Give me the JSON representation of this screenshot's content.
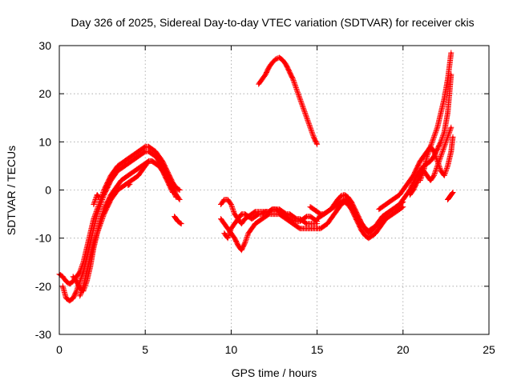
{
  "chart_data": {
    "type": "scatter",
    "title": "Day 326 of 2025, Sidereal Day-to-day VTEC variation (SDTVAR) for receiver ckis",
    "xlabel": "GPS time / hours",
    "ylabel": "SDTVAR / TECUs",
    "xlim": [
      0,
      25
    ],
    "ylim": [
      -30,
      30
    ],
    "xticks": [
      0,
      5,
      10,
      15,
      20,
      25
    ],
    "yticks": [
      -30,
      -20,
      -10,
      0,
      10,
      20,
      30
    ],
    "grid": true,
    "marker": "+",
    "color": "#ff0000",
    "series": [
      {
        "name": "s1",
        "x": [
          0.0,
          0.2,
          0.4,
          0.6,
          0.8,
          1.0,
          1.2,
          1.4,
          1.6,
          1.8,
          2.0,
          2.2,
          2.4,
          2.6,
          2.8,
          3.0,
          3.2,
          3.4,
          3.6,
          3.8,
          4.0,
          4.2,
          4.4,
          4.6,
          4.8,
          5.0,
          5.2,
          5.4,
          5.6,
          5.8,
          6.0,
          6.2,
          6.4,
          6.6,
          6.8,
          7.0
        ],
        "y": [
          -17.5,
          -18,
          -19,
          -19.5,
          -19,
          -18,
          -17,
          -15,
          -12,
          -9,
          -6,
          -4,
          -2,
          0,
          1.5,
          3,
          4,
          5,
          5.5,
          6,
          6.5,
          7,
          7.5,
          8,
          8.5,
          9,
          9,
          8.5,
          8,
          7,
          6,
          4.5,
          3,
          1.5,
          0.5,
          0
        ]
      },
      {
        "name": "s2",
        "x": [
          0.2,
          0.4,
          0.6,
          0.8,
          1.0,
          1.2,
          1.4,
          1.6,
          1.8,
          2.0,
          2.2,
          2.4,
          2.6,
          2.8,
          3.0,
          3.2,
          3.4,
          3.6,
          3.8,
          4.0,
          4.2,
          4.4,
          4.6,
          4.8,
          5.0,
          5.2,
          5.4,
          5.6,
          5.8,
          6.0,
          6.2,
          6.4,
          6.6,
          6.8,
          7.0
        ],
        "y": [
          -20,
          -22.5,
          -23,
          -22.5,
          -21,
          -19,
          -17,
          -14,
          -11,
          -8,
          -5,
          -3,
          -1,
          0.5,
          2,
          3,
          4,
          4.5,
          5,
          5.5,
          6,
          6.5,
          7,
          7.5,
          8,
          8,
          7.5,
          7,
          6,
          5,
          3.5,
          2,
          0.5,
          -1,
          -2
        ]
      },
      {
        "name": "s3",
        "x": [
          0.8,
          1.0,
          1.2,
          1.4,
          1.6,
          1.8,
          2.0,
          2.2,
          2.4,
          2.6,
          2.8,
          3.0,
          3.2,
          3.4,
          3.6,
          3.8,
          4.0,
          4.2,
          4.4,
          4.6,
          4.8,
          5.0,
          5.2,
          5.4,
          5.6,
          5.8,
          6.0,
          6.2,
          6.4,
          6.6
        ],
        "y": [
          -18,
          -19,
          -20.5,
          -21,
          -19,
          -16,
          -12,
          -9,
          -6,
          -4,
          -2.5,
          -1,
          0,
          1,
          2,
          2.5,
          3,
          3.5,
          4,
          4.5,
          5,
          5.5,
          6,
          6,
          5.5,
          5,
          4,
          2.5,
          1,
          -0.5
        ]
      },
      {
        "name": "s4",
        "x": [
          1.2,
          1.4,
          1.6,
          1.8,
          2.0,
          2.2,
          2.4,
          2.6,
          2.8,
          3.0,
          3.2,
          3.4,
          3.6,
          3.8,
          4.0,
          4.2,
          4.4,
          4.6,
          4.8,
          5.0,
          5.2,
          5.4,
          5.6,
          5.8,
          6.0,
          6.2,
          6.4,
          6.6,
          6.8
        ],
        "y": [
          -22,
          -20,
          -17,
          -14,
          -11,
          -9,
          -7,
          -5,
          -3.5,
          -2,
          -1,
          0,
          0.5,
          1,
          1.5,
          2,
          2.5,
          3,
          4,
          5,
          6,
          6,
          5.5,
          5,
          4,
          3,
          1.5,
          0,
          -1.5
        ]
      },
      {
        "name": "s5",
        "x": [
          2.0,
          2.1,
          2.2,
          2.3
        ],
        "y": [
          -3,
          -2,
          -1,
          -1.5
        ]
      },
      {
        "name": "s6",
        "x": [
          6.7,
          6.8,
          6.9,
          7.0,
          7.1
        ],
        "y": [
          -5.5,
          -6,
          -6.5,
          -6.8,
          -7
        ]
      },
      {
        "name": "s7",
        "x": [
          4.0,
          4.1
        ],
        "y": [
          1,
          1.2
        ]
      },
      {
        "name": "s8",
        "x": [
          9.4,
          9.6,
          9.8,
          10.0,
          10.2,
          10.4,
          10.6,
          10.8,
          11.0,
          11.2,
          11.4,
          11.6,
          11.8,
          12.0,
          12.2,
          12.4,
          12.6,
          12.8,
          13.0,
          13.2,
          13.4,
          13.6,
          13.8,
          14.0,
          14.2,
          14.4,
          14.6,
          14.8,
          15.0
        ],
        "y": [
          -3,
          -2,
          -2,
          -3,
          -5,
          -6,
          -7,
          -6,
          -5.5,
          -5,
          -4.5,
          -4.5,
          -4.5,
          -4.5,
          -4.5,
          -4,
          -4,
          -4,
          -4.5,
          -5,
          -5,
          -5.5,
          -6,
          -6,
          -6.5,
          -7,
          -7,
          -7,
          -7
        ]
      },
      {
        "name": "s9",
        "x": [
          9.4,
          9.6,
          9.8,
          10.0,
          10.2,
          10.4,
          10.6,
          10.8,
          11.0,
          11.2,
          11.4,
          11.6,
          11.8,
          12.0,
          12.2,
          12.4,
          12.6,
          12.8,
          13.0,
          13.2,
          13.4,
          13.6,
          13.8,
          14.0,
          14.2,
          14.4,
          14.6,
          14.8,
          15.0
        ],
        "y": [
          -6,
          -7,
          -8,
          -9,
          -10,
          -11.5,
          -12.5,
          -11,
          -9,
          -8,
          -7,
          -6.5,
          -6,
          -5.5,
          -5,
          -5,
          -5,
          -5,
          -5.5,
          -6,
          -6.5,
          -7,
          -7.5,
          -8,
          -8,
          -8,
          -8,
          -8,
          -8
        ]
      },
      {
        "name": "s10",
        "x": [
          9.6,
          9.8,
          10.0,
          10.2,
          10.4,
          10.6,
          10.8,
          11.0,
          11.2,
          11.4,
          11.6,
          11.8,
          12.0,
          12.2,
          12.4,
          12.6,
          12.8,
          13.0,
          13.2,
          13.4,
          13.6,
          13.8,
          14.0,
          14.2,
          14.4,
          14.6,
          14.8,
          15.0
        ],
        "y": [
          -9,
          -10,
          -8,
          -7,
          -6,
          -5,
          -5,
          -5.5,
          -6,
          -5.5,
          -5,
          -5,
          -4.5,
          -4.5,
          -4,
          -4,
          -4.5,
          -5,
          -5.5,
          -6,
          -6.5,
          -6.5,
          -6.5,
          -6,
          -5.5,
          -5.5,
          -6,
          -6.5
        ]
      },
      {
        "name": "s11",
        "x": [
          11.6,
          11.8,
          12.0,
          12.2,
          12.4,
          12.6,
          12.8,
          13.0,
          13.2,
          13.4,
          13.6,
          13.8,
          14.0,
          14.2,
          14.4,
          14.6,
          14.8,
          15.0
        ],
        "y": [
          22,
          23,
          24,
          25.5,
          26.5,
          27.2,
          27.5,
          27,
          26,
          24.5,
          23,
          21,
          19,
          17,
          15,
          13,
          11,
          9.5
        ]
      },
      {
        "name": "s12",
        "x": [
          15.0,
          15.2,
          15.4,
          15.6,
          15.8,
          16.0,
          16.2,
          16.4,
          16.6,
          16.8,
          17.0,
          17.2,
          17.4,
          17.6,
          17.8,
          18.0,
          18.2,
          18.4,
          18.6,
          18.8,
          19.0,
          19.2,
          19.4,
          19.6,
          19.8,
          20.0
        ],
        "y": [
          -6,
          -5.5,
          -5,
          -4.5,
          -4,
          -3,
          -2,
          -1.2,
          -1,
          -1.5,
          -2.5,
          -4,
          -5.5,
          -7,
          -8,
          -9,
          -8.5,
          -7.5,
          -7,
          -6,
          -5,
          -4.5,
          -4,
          -3.5,
          -3,
          -2.5
        ]
      },
      {
        "name": "s13",
        "x": [
          15.0,
          15.2,
          15.4,
          15.6,
          15.8,
          16.0,
          16.2,
          16.4,
          16.6,
          16.8,
          17.0,
          17.2,
          17.4,
          17.6,
          17.8,
          18.0,
          18.2,
          18.4,
          18.6,
          18.8,
          19.0,
          19.2,
          19.4,
          19.6,
          19.8,
          20.0
        ],
        "y": [
          -8,
          -8,
          -7.5,
          -7,
          -6,
          -5,
          -4,
          -3,
          -2.5,
          -3,
          -4,
          -5.5,
          -7,
          -8.5,
          -9.5,
          -10,
          -9.5,
          -9,
          -8,
          -7,
          -6,
          -5.5,
          -5,
          -4.5,
          -4,
          -3.5
        ]
      },
      {
        "name": "s14",
        "x": [
          14.6,
          14.8,
          15.0,
          15.2,
          15.4,
          15.6,
          15.8,
          16.0,
          16.2,
          16.4,
          16.6,
          16.8,
          17.0,
          17.2,
          17.4,
          17.6,
          17.8,
          18.0,
          18.2,
          18.4,
          18.6,
          18.8,
          19.0
        ],
        "y": [
          -3.5,
          -4,
          -4.5,
          -5,
          -5,
          -4.5,
          -4,
          -3.5,
          -3,
          -2.5,
          -2,
          -2.5,
          -3.5,
          -5,
          -6,
          -7,
          -8,
          -8.5,
          -8,
          -7.5,
          -6.5,
          -5.5,
          -5
        ]
      },
      {
        "name": "s15",
        "x": [
          18.6,
          18.8,
          19.0,
          19.2,
          19.4,
          19.6,
          19.8,
          20.0,
          20.2,
          20.4,
          20.6,
          20.8,
          21.0,
          21.2,
          21.4,
          21.6,
          21.8,
          22.0,
          22.2,
          22.4,
          22.6,
          22.8
        ],
        "y": [
          -4,
          -3.5,
          -3,
          -2.5,
          -2,
          -1.5,
          -1,
          0,
          1,
          2,
          3,
          4.5,
          6,
          7,
          8,
          9,
          11,
          13,
          16,
          19,
          23,
          28.5
        ]
      },
      {
        "name": "s16",
        "x": [
          19.6,
          19.8,
          20.0,
          20.2,
          20.4,
          20.6,
          20.8,
          21.0,
          21.2,
          21.4,
          21.6,
          21.8,
          22.0,
          22.2,
          22.4,
          22.6,
          22.8
        ],
        "y": [
          -3.5,
          -3,
          -2,
          -1,
          0,
          1.5,
          3,
          4,
          5,
          5.5,
          6,
          7,
          8.5,
          10,
          12,
          16,
          24
        ]
      },
      {
        "name": "s17",
        "x": [
          20.4,
          20.6,
          20.8,
          21.0,
          21.2,
          21.4,
          21.6,
          21.8,
          22.0,
          22.2,
          22.4,
          22.6,
          22.8
        ],
        "y": [
          -1,
          0,
          1.5,
          3,
          4,
          3,
          2,
          3,
          5,
          7,
          9,
          11,
          13
        ]
      },
      {
        "name": "s18",
        "x": [
          21.0,
          21.2,
          21.4,
          21.6,
          21.8,
          22.0,
          22.2,
          22.4,
          22.6,
          22.8,
          22.9
        ],
        "y": [
          2,
          4,
          7,
          9,
          8,
          6,
          4,
          3,
          5,
          8,
          11
        ]
      },
      {
        "name": "s19",
        "x": [
          22.6,
          22.7,
          22.8,
          22.9
        ],
        "y": [
          -2,
          -1.5,
          -1,
          -0.5
        ]
      }
    ]
  }
}
